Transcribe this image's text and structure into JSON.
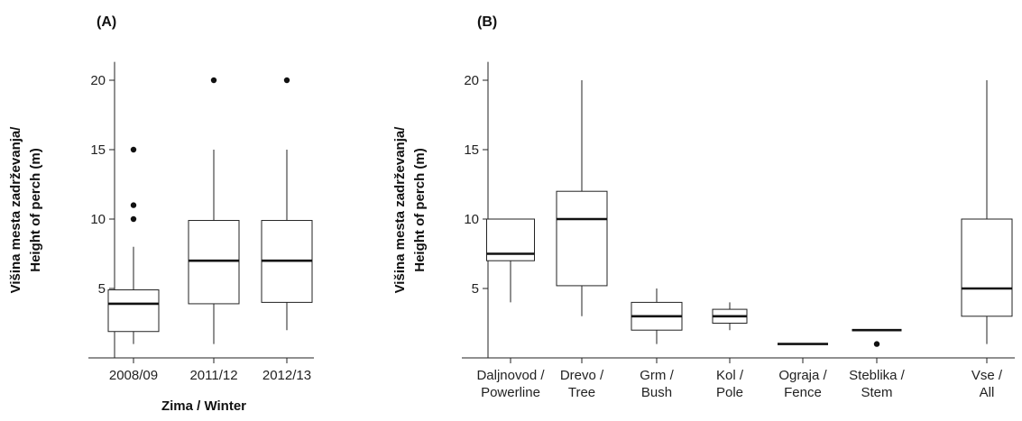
{
  "chart_data": [
    {
      "panel": "(A)",
      "type": "box",
      "xlabel": "Zima / Winter",
      "ylabel": [
        "Višina mesta zadrževanja/",
        "Height of perch (m)"
      ],
      "yticks": [
        5,
        10,
        15,
        20
      ],
      "ylim": [
        0,
        21
      ],
      "categories": [
        [
          "2008/09"
        ],
        [
          "2011/12"
        ],
        [
          "2012/13"
        ]
      ],
      "boxes": [
        {
          "whisker_low": 1,
          "q1": 1.9,
          "median": 3.9,
          "q3": 4.9,
          "whisker_high": 8,
          "outliers": [
            10,
            11,
            15
          ]
        },
        {
          "whisker_low": 1,
          "q1": 3.9,
          "median": 7,
          "q3": 9.9,
          "whisker_high": 15,
          "outliers": [
            20
          ]
        },
        {
          "whisker_low": 2,
          "q1": 4,
          "median": 7,
          "q3": 9.9,
          "whisker_high": 15,
          "outliers": [
            20
          ]
        }
      ]
    },
    {
      "panel": "(B)",
      "type": "box",
      "xlabel": "",
      "ylabel": [
        "Višina mesta zadrževanja/",
        "Height of perch (m)"
      ],
      "yticks": [
        5,
        10,
        15,
        20
      ],
      "ylim": [
        0,
        21
      ],
      "categories": [
        [
          "Daljnovod /",
          "Powerline"
        ],
        [
          "Drevo /",
          "Tree"
        ],
        [
          "Grm /",
          "Bush"
        ],
        [
          "Kol /",
          "Pole"
        ],
        [
          "Ograja /",
          "Fence"
        ],
        [
          "Steblika /",
          "Stem"
        ],
        [
          "Vse /",
          "All"
        ]
      ],
      "boxes": [
        {
          "whisker_low": 4,
          "q1": 7,
          "median": 7.5,
          "q3": 10,
          "whisker_high": 10,
          "outliers": []
        },
        {
          "whisker_low": 3,
          "q1": 5.2,
          "median": 10,
          "q3": 12,
          "whisker_high": 20,
          "outliers": []
        },
        {
          "whisker_low": 1,
          "q1": 2,
          "median": 3,
          "q3": 4,
          "whisker_high": 5,
          "outliers": []
        },
        {
          "whisker_low": 2,
          "q1": 2.5,
          "median": 3,
          "q3": 3.5,
          "whisker_high": 4,
          "outliers": []
        },
        {
          "whisker_low": 1,
          "q1": 1,
          "median": 1,
          "q3": 1,
          "whisker_high": 1,
          "outliers": []
        },
        {
          "whisker_low": 2,
          "q1": 2,
          "median": 2,
          "q3": 2,
          "whisker_high": 2,
          "outliers": [
            1
          ]
        },
        {
          "whisker_low": 1,
          "q1": 3,
          "median": 5,
          "q3": 10,
          "whisker_high": 20,
          "outliers": []
        }
      ]
    }
  ]
}
